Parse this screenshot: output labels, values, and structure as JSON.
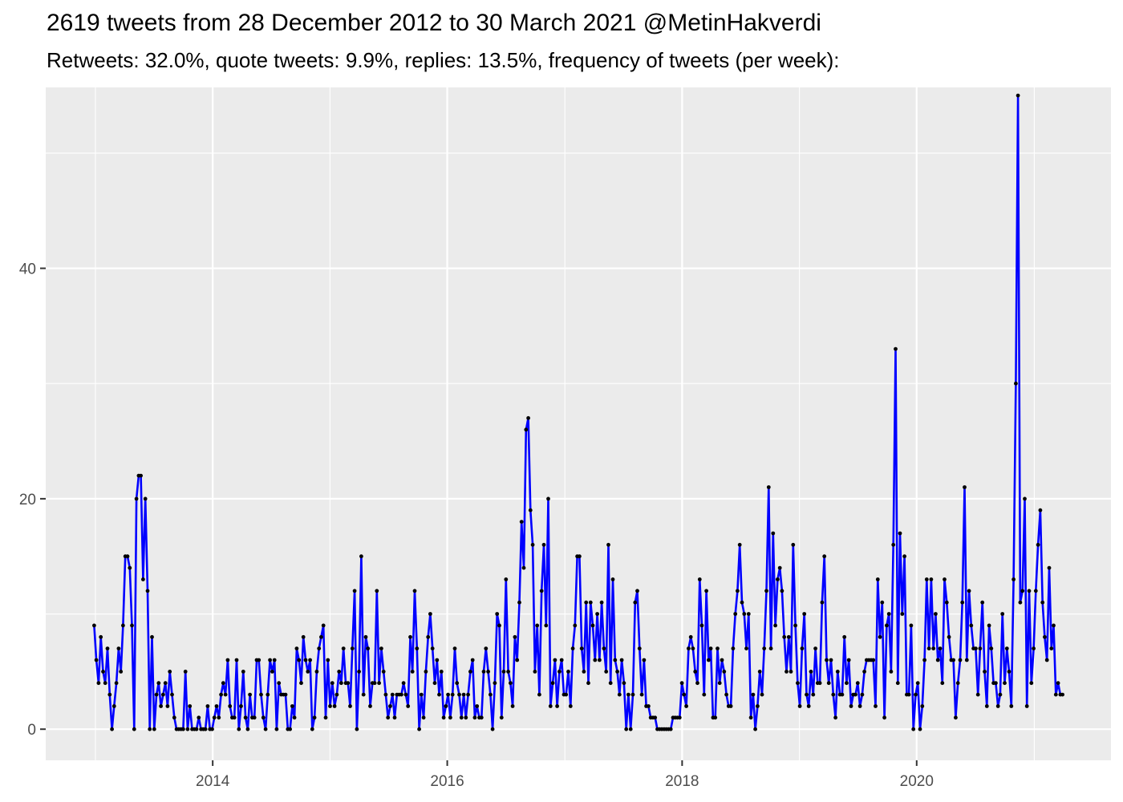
{
  "chart_data": {
    "type": "line",
    "title": "2619 tweets from 28 December 2012 to 30 March 2021 @MetinHakverdi",
    "subtitle": "Retweets: 32.0%, quote tweets: 9.9%, replies: 13.5%, frequency of tweets (per week):",
    "xlabel": "",
    "ylabel": "",
    "x_start": "2012-12-28",
    "x_end": "2021-03-30",
    "x_ticks": [
      "2014",
      "2016",
      "2018",
      "2020"
    ],
    "y_ticks": [
      "0",
      "20",
      "40"
    ],
    "ylim": [
      -2.7,
      55.7
    ],
    "grid": true,
    "colors": {
      "line": "#0000ff",
      "point": "#000000",
      "panel": "#ebebeb",
      "grid": "#ffffff"
    },
    "series": [
      {
        "values": [
          9,
          6,
          4,
          8,
          5,
          4,
          7,
          3,
          0,
          2,
          4,
          7,
          5,
          9,
          15,
          15,
          14,
          9,
          0,
          20,
          22,
          22,
          13,
          20,
          12,
          0,
          8,
          0,
          3,
          4,
          2,
          3,
          4,
          2,
          5,
          3,
          1,
          0,
          0,
          0,
          0,
          5,
          0,
          2,
          0,
          0,
          0,
          1,
          0,
          0,
          0,
          2,
          0,
          0,
          1,
          2,
          1,
          3,
          4,
          3,
          6,
          2,
          1,
          1,
          6,
          0,
          2,
          5,
          1,
          0,
          3,
          1,
          1,
          6,
          6,
          3,
          1,
          0,
          3,
          6,
          5,
          6,
          0,
          4,
          3,
          3,
          3,
          0,
          0,
          2,
          1,
          7,
          6,
          4,
          8,
          6,
          5,
          6,
          0,
          1,
          5,
          7,
          8,
          9,
          1,
          6,
          2,
          4,
          2,
          3,
          5,
          4,
          7,
          4,
          4,
          2,
          7,
          12,
          0,
          5,
          15,
          3,
          8,
          7,
          2,
          4,
          4,
          12,
          4,
          7,
          5,
          3,
          1,
          2,
          3,
          1,
          3,
          3,
          3,
          4,
          3,
          2,
          8,
          5,
          12,
          7,
          0,
          3,
          1,
          5,
          8,
          10,
          7,
          4,
          6,
          3,
          5,
          1,
          2,
          3,
          1,
          3,
          7,
          4,
          3,
          1,
          3,
          1,
          3,
          5,
          6,
          1,
          2,
          1,
          1,
          5,
          7,
          5,
          3,
          0,
          4,
          10,
          9,
          1,
          5,
          13,
          5,
          4,
          2,
          8,
          6,
          11,
          18,
          14,
          26,
          27,
          19,
          16,
          5,
          9,
          3,
          12,
          16,
          9,
          20,
          2,
          4,
          6,
          2,
          5,
          6,
          3,
          3,
          5,
          2,
          7,
          9,
          15,
          15,
          7,
          5,
          11,
          4,
          11,
          9,
          6,
          10,
          6,
          11,
          7,
          5,
          16,
          4,
          13,
          6,
          5,
          3,
          6,
          4,
          0,
          3,
          0,
          3,
          11,
          12,
          7,
          3,
          6,
          2,
          2,
          1,
          1,
          1,
          0,
          0,
          0,
          0,
          0,
          0,
          0,
          1,
          1,
          1,
          1,
          4,
          3,
          2,
          7,
          8,
          7,
          5,
          4,
          13,
          9,
          3,
          12,
          6,
          7,
          1,
          1,
          7,
          4,
          6,
          5,
          3,
          2,
          2,
          7,
          10,
          12,
          16,
          11,
          10,
          7,
          10,
          1,
          3,
          0,
          2,
          5,
          3,
          7,
          12,
          21,
          7,
          17,
          9,
          13,
          14,
          12,
          8,
          5,
          8,
          5,
          16,
          9,
          4,
          2,
          7,
          10,
          3,
          2,
          5,
          3,
          7,
          4,
          4,
          11,
          15,
          6,
          4,
          6,
          3,
          1,
          5,
          3,
          3,
          8,
          4,
          6,
          2,
          3,
          3,
          4,
          2,
          3,
          5,
          6,
          6,
          6,
          6,
          2,
          13,
          8,
          11,
          1,
          9,
          10,
          5,
          16,
          33,
          4,
          17,
          10,
          15,
          3,
          3,
          9,
          0,
          3,
          4,
          0,
          2,
          6,
          13,
          7,
          13,
          7,
          10,
          6,
          7,
          4,
          13,
          11,
          8,
          6,
          6,
          1,
          4,
          6,
          11,
          21,
          6,
          12,
          9,
          7,
          7,
          3,
          7,
          11,
          5,
          2,
          9,
          7,
          4,
          4,
          2,
          3,
          10,
          4,
          7,
          5,
          2,
          13,
          30,
          55,
          11,
          12,
          20,
          2,
          12,
          4,
          7,
          12,
          16,
          19,
          11,
          8,
          6,
          14,
          7,
          9,
          3,
          4,
          3,
          3
        ]
      }
    ]
  }
}
